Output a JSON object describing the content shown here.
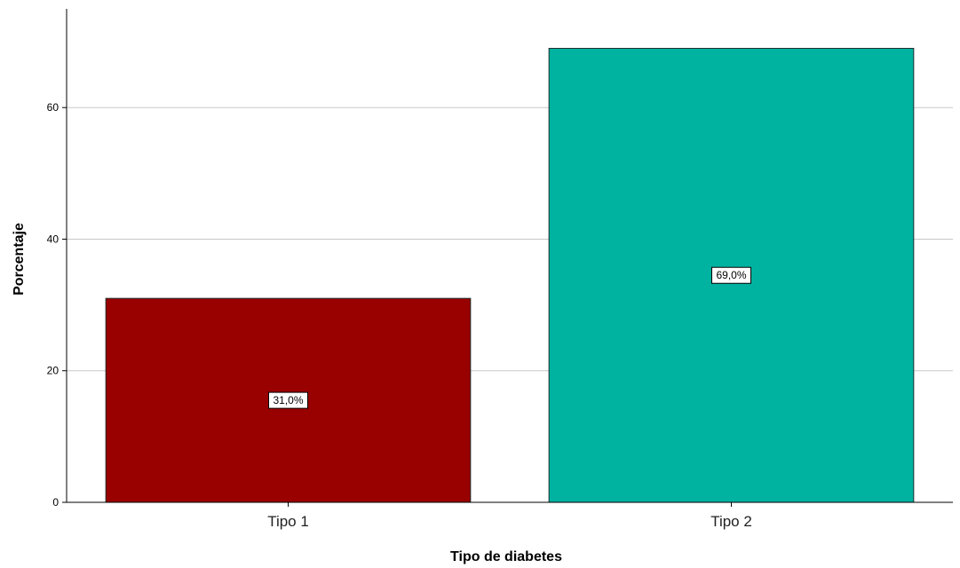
{
  "chart_data": {
    "type": "bar",
    "title": "",
    "xlabel": "Tipo de diabetes",
    "ylabel": "Porcentaje",
    "categories": [
      "Tipo 1",
      "Tipo 2"
    ],
    "values": [
      31.0,
      69.0
    ],
    "data_labels": [
      "31,0%",
      "69,0%"
    ],
    "colors": [
      "#990000",
      "#00b2a0"
    ],
    "ylim": [
      0,
      75
    ],
    "yticks": [
      0,
      20,
      40,
      60
    ],
    "grid": true,
    "legend": "none"
  }
}
